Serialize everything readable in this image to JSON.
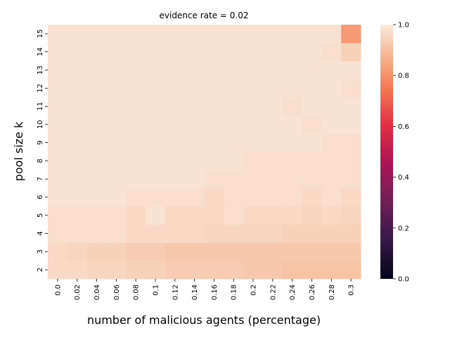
{
  "chart_data": {
    "type": "heatmap",
    "title": "evidence rate = 0.02",
    "xlabel": "number of malicious agents (percentage)",
    "ylabel": "pool size k",
    "x_categories": [
      "0.0",
      "0.02",
      "0.04",
      "0.06",
      "0.08",
      "0.1",
      "0.12",
      "0.14",
      "0.16",
      "0.18",
      "0.2",
      "0.22",
      "0.24",
      "0.26",
      "0.28",
      "0.3"
    ],
    "y_categories": [
      "2",
      "3",
      "4",
      "5",
      "6",
      "7",
      "8",
      "9",
      "10",
      "11",
      "12",
      "13",
      "14",
      "15"
    ],
    "values": [
      [
        0.96,
        0.96,
        0.95,
        0.95,
        0.94,
        0.94,
        0.93,
        0.93,
        0.93,
        0.93,
        0.92,
        0.92,
        0.91,
        0.91,
        0.91,
        0.91
      ],
      [
        0.96,
        0.95,
        0.94,
        0.94,
        0.93,
        0.93,
        0.92,
        0.92,
        0.92,
        0.92,
        0.92,
        0.92,
        0.92,
        0.92,
        0.92,
        0.92
      ],
      [
        0.97,
        0.97,
        0.97,
        0.97,
        0.96,
        0.96,
        0.96,
        0.96,
        0.95,
        0.95,
        0.95,
        0.95,
        0.94,
        0.94,
        0.94,
        0.94
      ],
      [
        0.97,
        0.97,
        0.97,
        0.97,
        0.96,
        0.98,
        0.96,
        0.96,
        0.96,
        0.97,
        0.96,
        0.96,
        0.96,
        0.95,
        0.96,
        0.95
      ],
      [
        0.98,
        0.98,
        0.98,
        0.98,
        0.97,
        0.97,
        0.97,
        0.97,
        0.96,
        0.97,
        0.97,
        0.97,
        0.97,
        0.96,
        0.97,
        0.96
      ],
      [
        0.98,
        0.98,
        0.98,
        0.98,
        0.98,
        0.98,
        0.98,
        0.98,
        0.97,
        0.97,
        0.97,
        0.97,
        0.97,
        0.97,
        0.97,
        0.97
      ],
      [
        0.98,
        0.98,
        0.98,
        0.98,
        0.98,
        0.98,
        0.98,
        0.98,
        0.98,
        0.98,
        0.97,
        0.97,
        0.97,
        0.97,
        0.97,
        0.97
      ],
      [
        0.98,
        0.98,
        0.98,
        0.98,
        0.98,
        0.98,
        0.98,
        0.98,
        0.98,
        0.98,
        0.98,
        0.98,
        0.98,
        0.98,
        0.97,
        0.97
      ],
      [
        0.98,
        0.98,
        0.98,
        0.98,
        0.98,
        0.98,
        0.98,
        0.98,
        0.98,
        0.98,
        0.98,
        0.98,
        0.98,
        0.97,
        0.98,
        0.98
      ],
      [
        0.98,
        0.98,
        0.98,
        0.98,
        0.98,
        0.98,
        0.98,
        0.98,
        0.98,
        0.98,
        0.98,
        0.98,
        0.97,
        0.98,
        0.98,
        0.98
      ],
      [
        0.98,
        0.98,
        0.98,
        0.98,
        0.98,
        0.98,
        0.98,
        0.98,
        0.98,
        0.98,
        0.98,
        0.98,
        0.98,
        0.98,
        0.98,
        0.97
      ],
      [
        0.98,
        0.98,
        0.98,
        0.98,
        0.98,
        0.98,
        0.98,
        0.98,
        0.98,
        0.98,
        0.98,
        0.98,
        0.98,
        0.98,
        0.98,
        0.98
      ],
      [
        0.98,
        0.98,
        0.98,
        0.98,
        0.98,
        0.98,
        0.98,
        0.98,
        0.98,
        0.98,
        0.98,
        0.98,
        0.98,
        0.98,
        0.97,
        0.94
      ],
      [
        0.98,
        0.98,
        0.98,
        0.98,
        0.98,
        0.98,
        0.98,
        0.98,
        0.98,
        0.98,
        0.98,
        0.98,
        0.98,
        0.98,
        0.98,
        0.82
      ]
    ],
    "vmin": 0.0,
    "vmax": 1.0,
    "colorbar_ticks": [
      "0.0",
      "0.2",
      "0.4",
      "0.6",
      "0.8",
      "1.0"
    ],
    "colormap": "rocket",
    "grid": false,
    "legend": "colorbar-right"
  }
}
